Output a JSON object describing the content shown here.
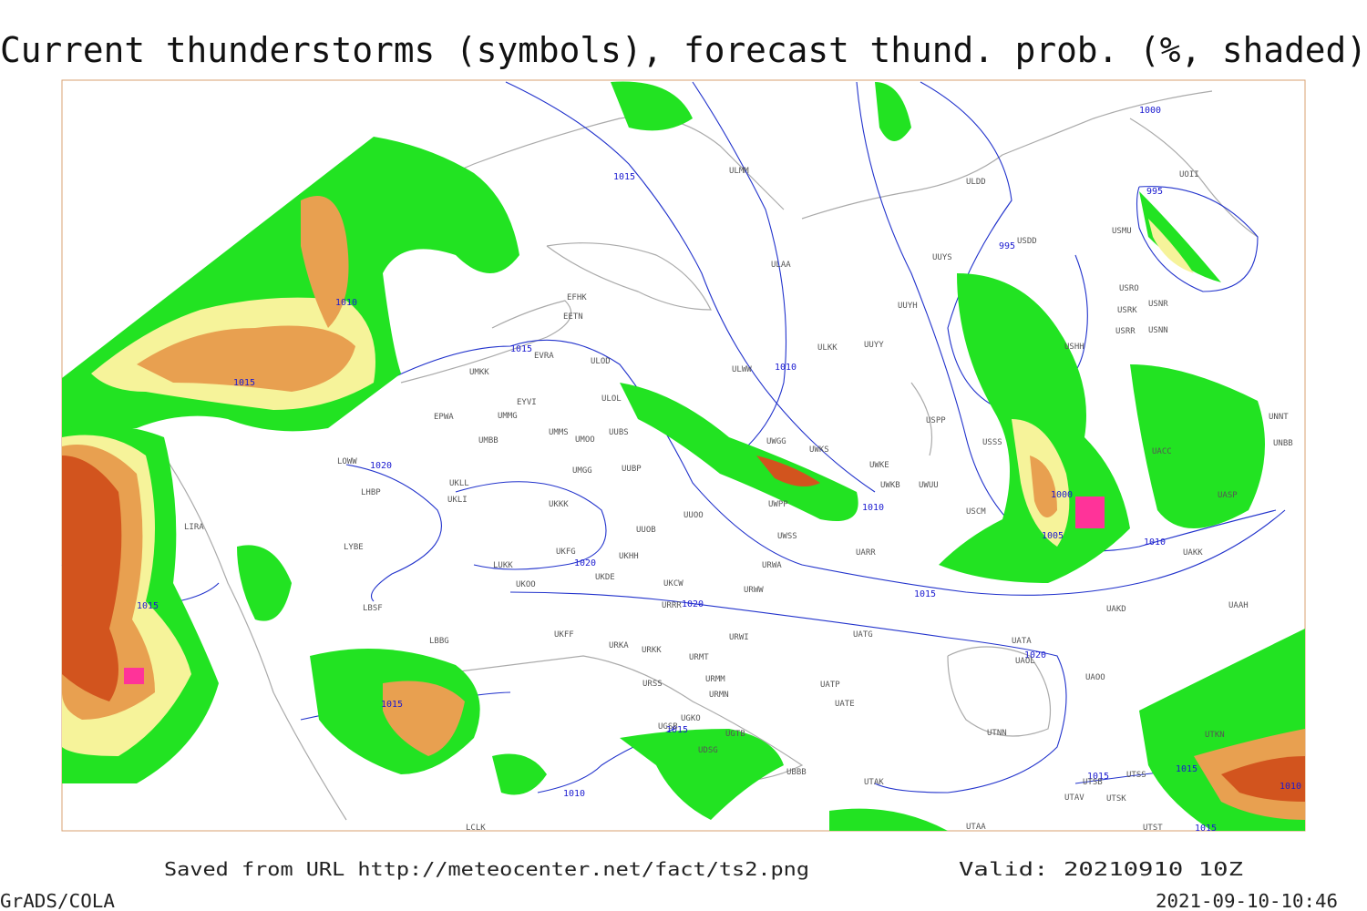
{
  "title": "Current thunderstorms (symbols), forecast thund. prob. (%, shaded)",
  "footer": {
    "source": "Saved from URL http://meteocenter.net/fact/ts2.png",
    "valid": "Valid: 20210910 10Z",
    "software": "GrADS/COLA",
    "timestamp": "2021-09-10-10:46"
  },
  "isobar_labels": [
    1000,
    995,
    995,
    1015,
    1010,
    1015,
    1015,
    1010,
    1020,
    1010,
    1000,
    1005,
    1010,
    1015,
    1020,
    1020,
    1020,
    1015,
    1015,
    1015,
    1010,
    1015,
    1015,
    1010,
    1015
  ],
  "stations": [
    "ULMM",
    "ULAA",
    "ULDD",
    "UUYS",
    "USDD",
    "USMU",
    "UOII",
    "UUYH",
    "USRO",
    "USRK",
    "USNR",
    "USRR",
    "USNN",
    "USHH",
    "ULKK",
    "UUYY",
    "ULWW",
    "EFHK",
    "EETN",
    "EVRA",
    "ULOD",
    "UMKK",
    "ULOL",
    "EYVI",
    "UMMG",
    "EPWA",
    "UMMS",
    "UMOO",
    "UUBS",
    "UMBB",
    "USSS",
    "UWKS",
    "UWGG",
    "UWKE",
    "UWKB",
    "UWUU",
    "USPP",
    "LOWW",
    "UMGG",
    "UUBP",
    "UKLL",
    "UKLI",
    "LHBP",
    "UKKK",
    "UUOO",
    "UWPP",
    "LIRA",
    "UUOB",
    "LYBE",
    "UWSS",
    "UARR",
    "UKHH",
    "UKFG",
    "LUKK",
    "UKOO",
    "UKDE",
    "URWA",
    "UKCW",
    "URWW",
    "LBSF",
    "URRR",
    "UATG",
    "UATA",
    "UAOL",
    "UAOO",
    "LBBG",
    "UKFF",
    "URKA",
    "URKK",
    "URWI",
    "URMT",
    "URSS",
    "URMM",
    "URMN",
    "UATP",
    "UATE",
    "UTNN",
    "UGKO",
    "UGSB",
    "UGTB",
    "UDSG",
    "UBBB",
    "UTAK",
    "UTSS",
    "UTSB",
    "UTAV",
    "UTSK",
    "LCLK",
    "UTAA",
    "UTST",
    "UAKD",
    "UAAH",
    "UAKK",
    "UTKN",
    "UACC",
    "UASP",
    "UNNT",
    "UNBB",
    "USCM"
  ]
}
